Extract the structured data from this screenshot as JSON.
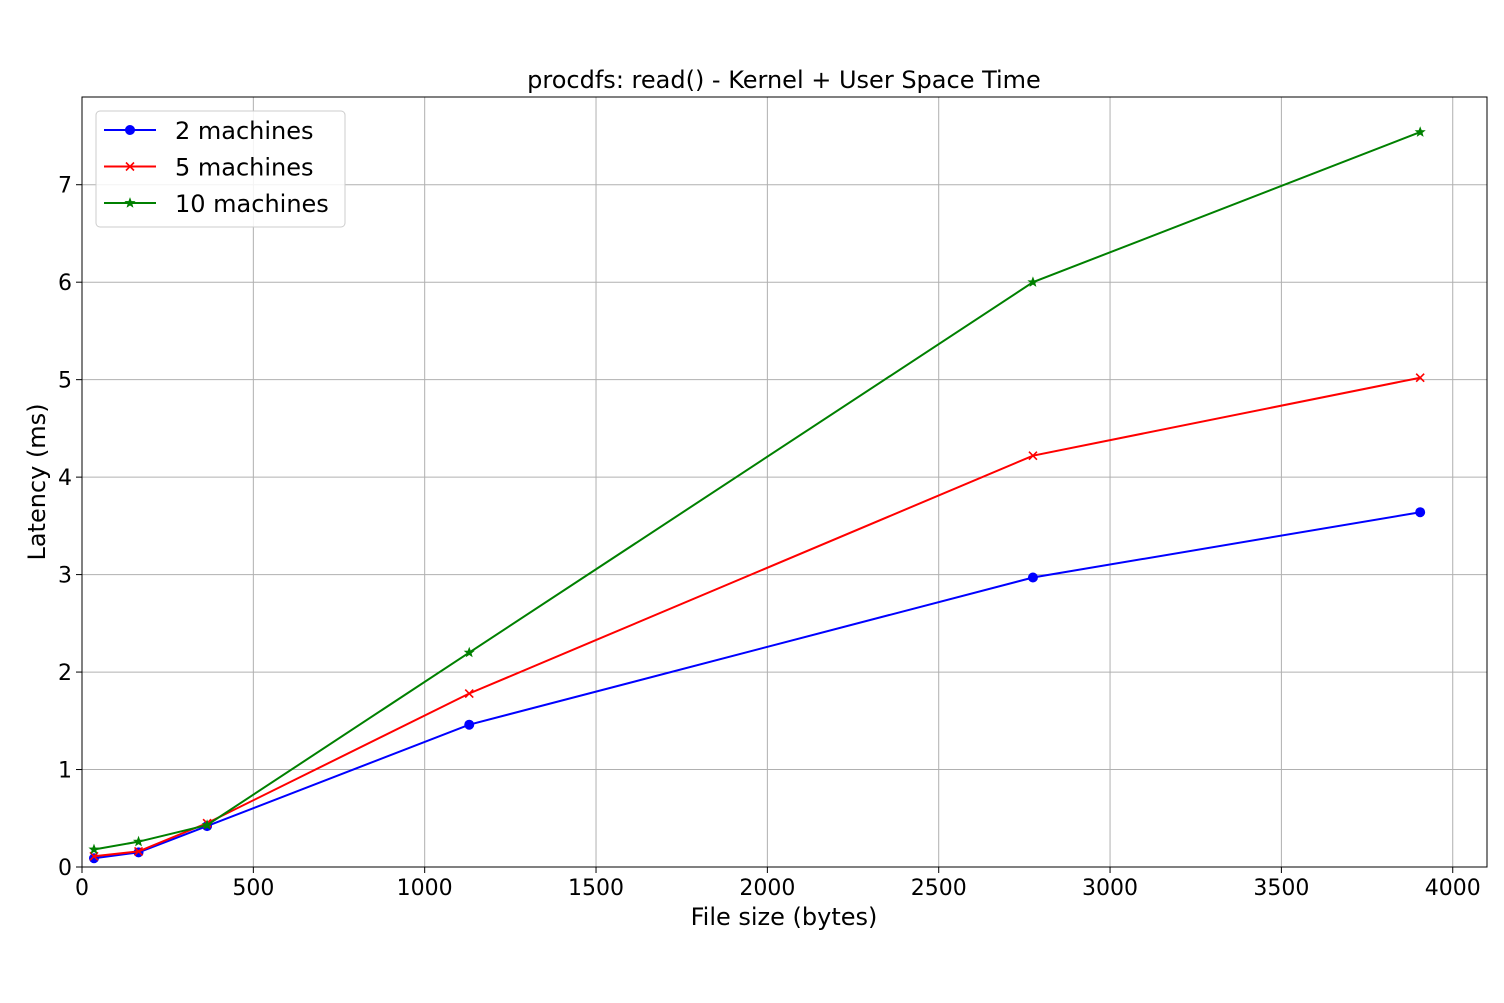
{
  "chart_data": {
    "type": "line",
    "title": "procdfs: read() - Kernel + User Space Time",
    "xlabel": "File size (bytes)",
    "ylabel": "Latency (ms)",
    "xlim": [
      0,
      4100
    ],
    "ylim": [
      0,
      7.9
    ],
    "xticks": [
      0,
      500,
      1000,
      1500,
      2000,
      2500,
      3000,
      3500,
      4000
    ],
    "yticks": [
      0,
      1,
      2,
      3,
      4,
      5,
      6,
      7
    ],
    "grid": true,
    "legend_position": "top-left",
    "series": [
      {
        "name": "2 machines",
        "color": "#0000ff",
        "marker": "circle",
        "x": [
          35,
          165,
          365,
          1130,
          2775,
          3905
        ],
        "y": [
          0.09,
          0.15,
          0.42,
          1.46,
          2.97,
          3.64
        ]
      },
      {
        "name": "5 machines",
        "color": "#ff0000",
        "marker": "x",
        "x": [
          35,
          165,
          365,
          1130,
          2775,
          3905
        ],
        "y": [
          0.11,
          0.16,
          0.45,
          1.78,
          4.22,
          5.02
        ]
      },
      {
        "name": "10 machines",
        "color": "#008000",
        "marker": "star",
        "x": [
          35,
          165,
          365,
          1130,
          2775,
          3905
        ],
        "y": [
          0.18,
          0.26,
          0.43,
          2.2,
          6.0,
          7.54
        ]
      }
    ]
  }
}
